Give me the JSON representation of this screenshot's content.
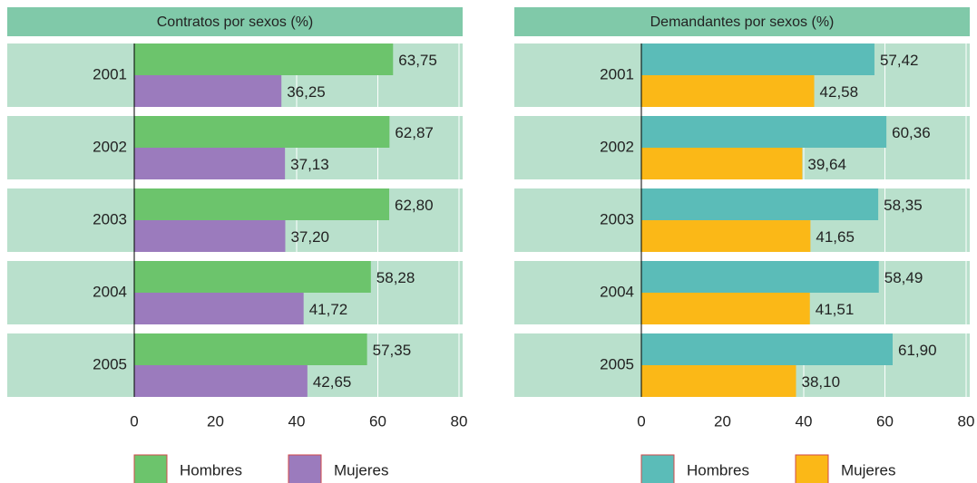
{
  "chart_data": [
    {
      "type": "bar",
      "title": "Contratos por sexos (%)",
      "categories": [
        "2001",
        "2002",
        "2003",
        "2004",
        "2005"
      ],
      "series": [
        {
          "name": "Hombres",
          "color": "#6cc46c",
          "values": [
            63.75,
            62.87,
            62.8,
            58.28,
            57.35
          ],
          "value_labels": [
            "63,75",
            "62,87",
            "62,80",
            "58,28",
            "57,35"
          ]
        },
        {
          "name": "Mujeres",
          "color": "#9b7bbd",
          "values": [
            36.25,
            37.13,
            37.2,
            41.72,
            42.65
          ],
          "value_labels": [
            "36,25",
            "37,13",
            "37,20",
            "41,72",
            "42,65"
          ]
        }
      ],
      "xlim": [
        0,
        80
      ],
      "xticks": [
        0,
        20,
        40,
        60,
        80
      ],
      "grid": true
    },
    {
      "type": "bar",
      "title": "Demandantes por sexos (%)",
      "categories": [
        "2001",
        "2002",
        "2003",
        "2004",
        "2005"
      ],
      "series": [
        {
          "name": "Hombres",
          "color": "#5bbcb8",
          "values": [
            57.42,
            60.36,
            58.35,
            58.49,
            61.9
          ],
          "value_labels": [
            "57,42",
            "60,36",
            "58,35",
            "58,49",
            "61,90"
          ]
        },
        {
          "name": "Mujeres",
          "color": "#fbb817",
          "values": [
            42.58,
            39.64,
            41.65,
            41.51,
            38.1
          ],
          "value_labels": [
            "42,58",
            "39,64",
            "41,65",
            "41,51",
            "38,10"
          ]
        }
      ],
      "xlim": [
        0,
        80
      ],
      "xticks": [
        0,
        20,
        40,
        60,
        80
      ],
      "grid": true
    }
  ]
}
